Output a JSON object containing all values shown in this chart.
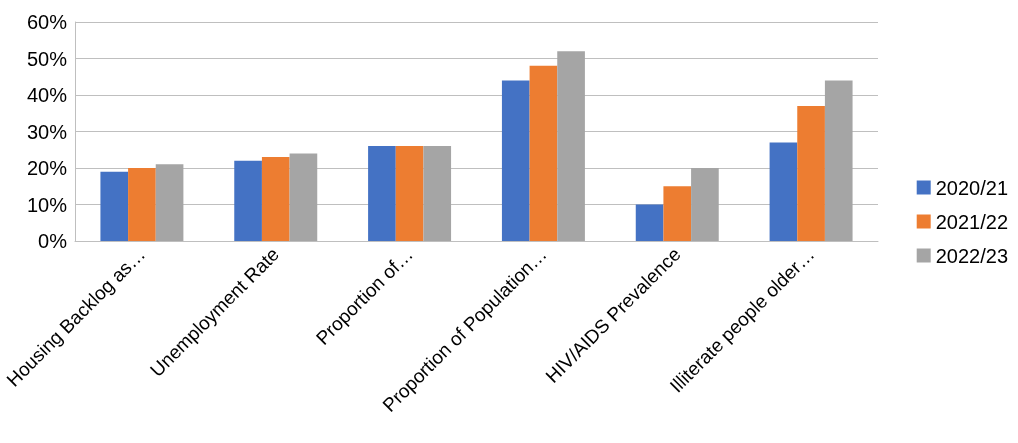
{
  "chart_data": {
    "type": "bar",
    "categories": [
      "Housing Backlog as…",
      "Unemployment Rate",
      "Proportion of…",
      "Proportion of Population…",
      "HIV/AIDS Prevalence",
      "Illiterate people older…"
    ],
    "series": [
      {
        "name": "2020/21",
        "color": "#4472c4",
        "values": [
          19,
          22,
          26,
          44,
          10,
          27
        ]
      },
      {
        "name": "2021/22",
        "color": "#ed7d31",
        "values": [
          20,
          23,
          26,
          48,
          15,
          37
        ]
      },
      {
        "name": "2022/23",
        "color": "#a5a5a5",
        "values": [
          21,
          24,
          26,
          52,
          20,
          44
        ]
      }
    ],
    "ylim": [
      0,
      60
    ],
    "yticks": [
      {
        "value": 0,
        "label": "0%"
      },
      {
        "value": 10,
        "label": "10%"
      },
      {
        "value": 20,
        "label": "20%"
      },
      {
        "value": 30,
        "label": "30%"
      },
      {
        "value": 40,
        "label": "40%"
      },
      {
        "value": 50,
        "label": "50%"
      },
      {
        "value": 60,
        "label": "60%"
      }
    ],
    "grid": "y",
    "legend": "right"
  }
}
